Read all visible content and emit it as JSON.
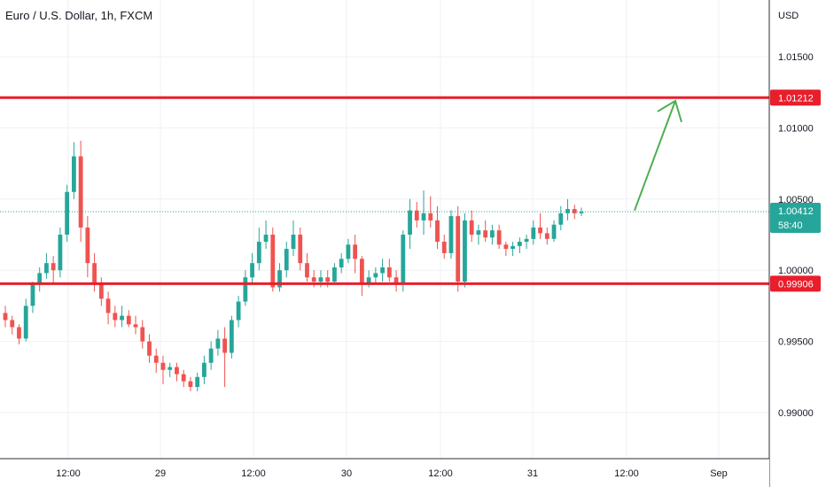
{
  "header": {
    "title": "Euro / U.S. Dollar, 1h, FXCM"
  },
  "price_axis": {
    "currency": "USD"
  },
  "colors": {
    "up": "#26a69a",
    "down": "#ef5350",
    "level": "#e91e2b",
    "arrow": "#4caf50",
    "grid": "#eef1f5"
  },
  "chart_data": {
    "type": "candlestick",
    "title": "Euro / U.S. Dollar, 1h, FXCM",
    "y_ticks": [
      "1.01500",
      "1.01000",
      "1.00500",
      "1.00000",
      "0.99500",
      "0.99000"
    ],
    "ylim": [
      0.9865,
      1.0182
    ],
    "x_ticks": [
      "12:00",
      "29",
      "12:00",
      "30",
      "12:00",
      "31",
      "12:00",
      "Sep"
    ],
    "horizontal_levels": [
      {
        "value": 1.01212,
        "label": "1.01212"
      },
      {
        "value": 0.99906,
        "label": "0.99906"
      }
    ],
    "current_price": {
      "value": 1.00412,
      "label": "1.00412",
      "countdown": "58:40"
    },
    "projection_arrow": {
      "from_price": 1.0042,
      "to_price": 1.0119
    },
    "candles": [
      [
        0.997,
        0.9975,
        0.996,
        0.9965
      ],
      [
        0.9965,
        0.9968,
        0.9955,
        0.996
      ],
      [
        0.996,
        0.9962,
        0.9948,
        0.9952
      ],
      [
        0.9952,
        0.998,
        0.995,
        0.9975
      ],
      [
        0.9975,
        0.9992,
        0.997,
        0.999
      ],
      [
        0.999,
        1.0002,
        0.9985,
        0.9998
      ],
      [
        0.9998,
        1.0012,
        0.9994,
        1.0005
      ],
      [
        1.0005,
        1.001,
        0.999,
        1.0
      ],
      [
        1.0,
        1.003,
        0.9995,
        1.0025
      ],
      [
        1.0025,
        1.006,
        1.002,
        1.0055
      ],
      [
        1.0055,
        1.009,
        1.005,
        1.008
      ],
      [
        1.008,
        1.0091,
        1.002,
        1.003
      ],
      [
        1.003,
        1.0038,
        0.9995,
        1.0005
      ],
      [
        1.0005,
        1.0012,
        0.9985,
        0.999
      ],
      [
        0.999,
        0.9995,
        0.9975,
        0.998
      ],
      [
        0.998,
        0.9985,
        0.9962,
        0.997
      ],
      [
        0.997,
        0.9975,
        0.996,
        0.9965
      ],
      [
        0.9965,
        0.9975,
        0.996,
        0.9968
      ],
      [
        0.9968,
        0.9972,
        0.996,
        0.9962
      ],
      [
        0.9962,
        0.9968,
        0.9955,
        0.996
      ],
      [
        0.996,
        0.9965,
        0.9945,
        0.995
      ],
      [
        0.995,
        0.9955,
        0.9935,
        0.994
      ],
      [
        0.994,
        0.9945,
        0.9928,
        0.9935
      ],
      [
        0.9935,
        0.994,
        0.992,
        0.993
      ],
      [
        0.993,
        0.9935,
        0.9925,
        0.9932
      ],
      [
        0.9932,
        0.9935,
        0.9922,
        0.9927
      ],
      [
        0.9927,
        0.993,
        0.9918,
        0.9922
      ],
      [
        0.9922,
        0.9925,
        0.9915,
        0.9918
      ],
      [
        0.9918,
        0.9928,
        0.9915,
        0.9925
      ],
      [
        0.9925,
        0.994,
        0.992,
        0.9935
      ],
      [
        0.9935,
        0.995,
        0.993,
        0.9945
      ],
      [
        0.9945,
        0.9958,
        0.994,
        0.9952
      ],
      [
        0.9952,
        0.996,
        0.9918,
        0.9942
      ],
      [
        0.9942,
        0.9968,
        0.9938,
        0.9965
      ],
      [
        0.9965,
        0.9982,
        0.996,
        0.9978
      ],
      [
        0.9978,
        1.0,
        0.9975,
        0.9995
      ],
      [
        0.9995,
        1.0012,
        0.999,
        1.0005
      ],
      [
        1.0005,
        1.003,
        1.0,
        1.002
      ],
      [
        1.002,
        1.0035,
        1.0015,
        1.0025
      ],
      [
        1.0025,
        1.003,
        0.9985,
        0.9988
      ],
      [
        0.9988,
        1.0005,
        0.9985,
        1.0
      ],
      [
        1.0,
        1.002,
        0.9995,
        1.0015
      ],
      [
        1.0015,
        1.0035,
        1.001,
        1.0025
      ],
      [
        1.0025,
        1.003,
        1.0,
        1.0005
      ],
      [
        1.0005,
        1.0012,
        0.9992,
        0.9995
      ],
      [
        0.9995,
        1.0,
        0.9988,
        0.9992
      ],
      [
        0.9992,
        1.0,
        0.9988,
        0.9995
      ],
      [
        0.9995,
        1.0,
        0.9988,
        0.9992
      ],
      [
        0.9992,
        1.0005,
        0.999,
        1.0002
      ],
      [
        1.0002,
        1.0012,
        0.9998,
        1.0008
      ],
      [
        1.0008,
        1.0022,
        1.0005,
        1.0018
      ],
      [
        1.0018,
        1.0025,
        0.9998,
        1.0008
      ],
      [
        1.0008,
        1.001,
        0.9982,
        0.999
      ],
      [
        0.999,
        1.0,
        0.9988,
        0.9995
      ],
      [
        0.9995,
        1.0002,
        0.999,
        0.9998
      ],
      [
        0.9998,
        1.0008,
        0.9992,
        1.0002
      ],
      [
        1.0002,
        1.0008,
        0.9992,
        0.9995
      ],
      [
        0.9995,
        1.0,
        0.9985,
        0.999
      ],
      [
        0.999,
        1.0028,
        0.9985,
        1.0025
      ],
      [
        1.0025,
        1.005,
        1.0015,
        1.0042
      ],
      [
        1.0042,
        1.0048,
        1.003,
        1.0035
      ],
      [
        1.0035,
        1.0056,
        1.0025,
        1.004
      ],
      [
        1.004,
        1.0052,
        1.003,
        1.0035
      ],
      [
        1.0035,
        1.0045,
        1.0015,
        1.002
      ],
      [
        1.002,
        1.0025,
        1.0008,
        1.0012
      ],
      [
        1.0012,
        1.0042,
        1.0008,
        1.0038
      ],
      [
        1.0038,
        1.0045,
        0.9985,
        0.9992
      ],
      [
        0.9992,
        1.004,
        0.9988,
        1.0035
      ],
      [
        1.0035,
        1.0042,
        1.002,
        1.0025
      ],
      [
        1.0025,
        1.0032,
        1.0018,
        1.0028
      ],
      [
        1.0028,
        1.0035,
        1.002,
        1.0023
      ],
      [
        1.0023,
        1.0032,
        1.0018,
        1.0028
      ],
      [
        1.0028,
        1.0032,
        1.0015,
        1.0018
      ],
      [
        1.0018,
        1.002,
        1.001,
        1.0015
      ],
      [
        1.0015,
        1.002,
        1.001,
        1.0017
      ],
      [
        1.0017,
        1.0023,
        1.0012,
        1.002
      ],
      [
        1.002,
        1.0025,
        1.0015,
        1.0022
      ],
      [
        1.0022,
        1.0035,
        1.0018,
        1.003
      ],
      [
        1.003,
        1.004,
        1.0022,
        1.0026
      ],
      [
        1.0026,
        1.003,
        1.0018,
        1.0022
      ],
      [
        1.0022,
        1.0035,
        1.002,
        1.0032
      ],
      [
        1.0032,
        1.0045,
        1.0028,
        1.004
      ],
      [
        1.004,
        1.005,
        1.0035,
        1.0043
      ],
      [
        1.0043,
        1.0046,
        1.0036,
        1.004
      ],
      [
        1.004,
        1.0044,
        1.0038,
        1.0041
      ]
    ]
  }
}
